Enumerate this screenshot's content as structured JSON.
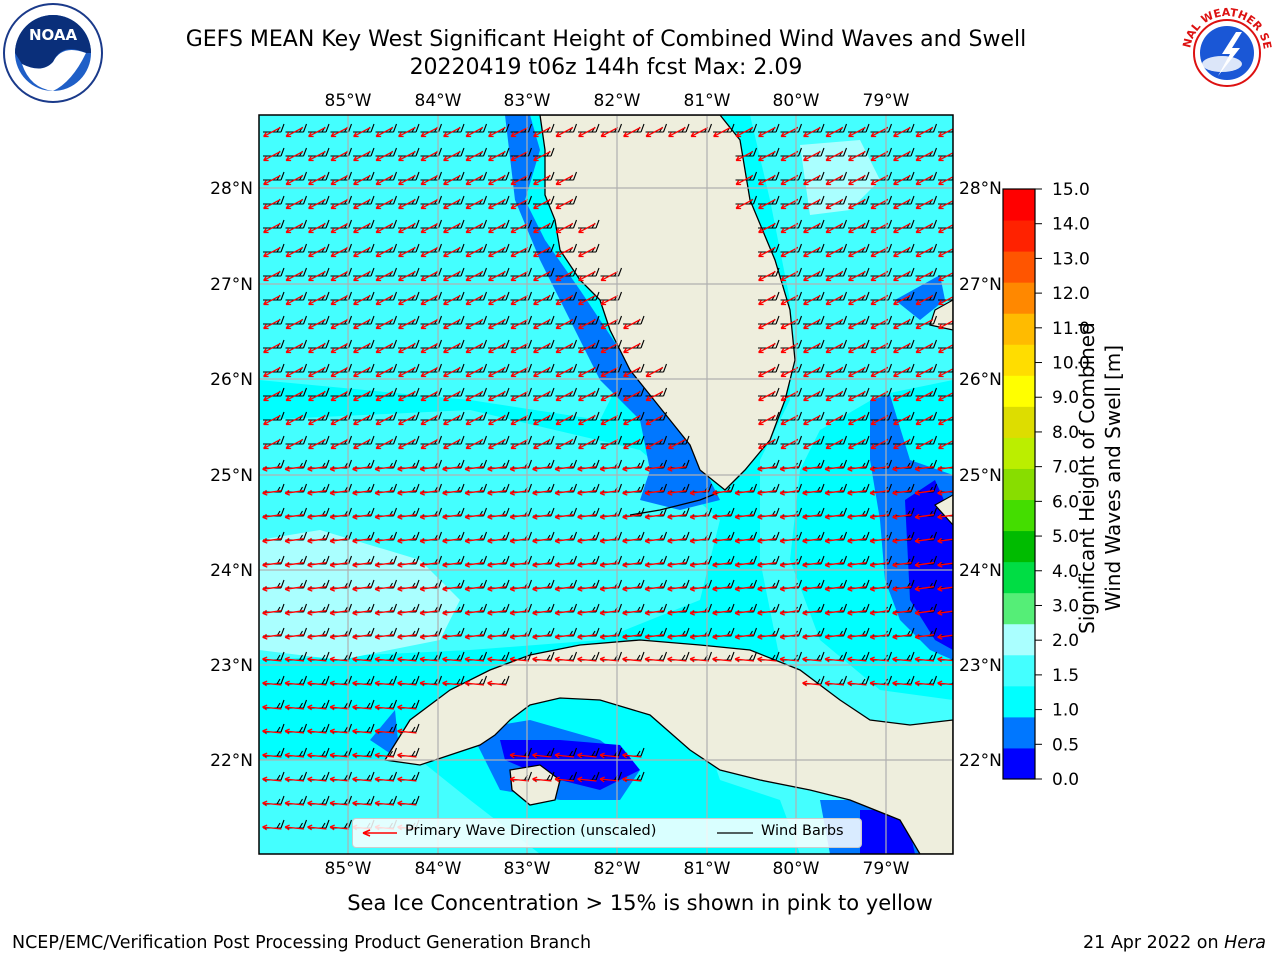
{
  "title": {
    "line1": "GEFS MEAN Key West Significant Height of Combined Wind Waves and Swell",
    "line2": "20220419 t06z 144h fcst   Max: 2.09"
  },
  "logos": {
    "left": {
      "name": "noaa-logo",
      "text": "NOAA"
    },
    "right": {
      "name": "nws-logo",
      "text": "NATIONAL WEATHER SERVICE"
    }
  },
  "map": {
    "lon_labels": [
      "85°W",
      "84°W",
      "83°W",
      "82°W",
      "81°W",
      "80°W",
      "79°W"
    ],
    "lat_labels": [
      "28°N",
      "27°N",
      "26°N",
      "25°N",
      "24°N",
      "23°N",
      "22°N"
    ],
    "legend": {
      "wave_dir": "Primary Wave Direction (unscaled)",
      "wind_barbs": "Wind Barbs"
    },
    "colors": {
      "land": "#eeeedd",
      "grid": "#b0b0b0",
      "wave_arrow": "#ff0000",
      "barb": "#000000"
    }
  },
  "colorbar": {
    "label_line1": "Significant Height of Combined",
    "label_line2": "Wind Waves and Swell [m]",
    "ticks": [
      "15.0",
      "14.0",
      "13.0",
      "12.0",
      "11.0",
      "10.0",
      "9.0",
      "8.0",
      "7.0",
      "6.0",
      "5.0",
      "4.0",
      "3.0",
      "2.0",
      "1.5",
      "1.0",
      "0.5",
      "0.0"
    ],
    "colors": [
      "#0000ff",
      "#0077ff",
      "#00ffff",
      "#44ffff",
      "#aaffff",
      "#55ee77",
      "#00dd44",
      "#00bb00",
      "#44dd00",
      "#88dd00",
      "#bbee00",
      "#dddd00",
      "#ffff00",
      "#ffdd00",
      "#ffbb00",
      "#ff8800",
      "#ff5500",
      "#ff2200",
      "#ff0000"
    ]
  },
  "caption": "Sea Ice Concentration > 15% is shown in pink to yellow",
  "footer": {
    "left": "NCEP/EMC/Verification Post Processing Product Generation Branch",
    "right_prefix": "21 Apr 2022 on ",
    "right_host": "Hera"
  }
}
